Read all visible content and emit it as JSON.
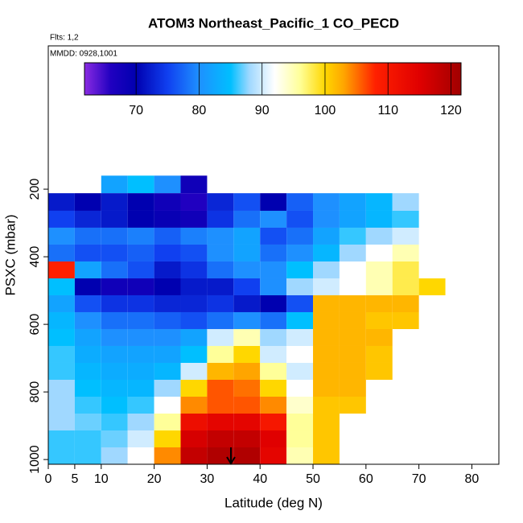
{
  "chart_data": {
    "type": "heatmap",
    "title": "ATOM3 Northeast_Pacific_1 CO_PECD",
    "flights": "Flts: 1,2",
    "dates": "MMDD: 0928,1001",
    "x_label": "Latitude (deg N)",
    "y_label": "PSXC (mbar)",
    "xlim": [
      0,
      85.1
    ],
    "ylim": [
      1014,
      -224
    ],
    "xticks": [
      0,
      5,
      10,
      20,
      30,
      40,
      50,
      60,
      70,
      80
    ],
    "yticks": [
      200,
      400,
      600,
      800,
      1000
    ],
    "lat_edges": [
      0,
      5,
      10,
      15,
      20,
      25,
      30,
      35,
      40,
      45,
      50,
      55,
      60,
      65,
      70,
      75
    ],
    "pressure_edges": [
      160,
      212,
      264,
      314,
      364,
      414,
      464,
      514,
      564,
      614,
      664,
      714,
      764,
      814,
      864,
      914,
      964,
      1014
    ],
    "values": [
      [
        null,
        null,
        82,
        85,
        80,
        68,
        null,
        null,
        null,
        null,
        null,
        null,
        null,
        null,
        null
      ],
      [
        72,
        70,
        72,
        70,
        68,
        66,
        73,
        76,
        70,
        77,
        80,
        82,
        84,
        88,
        null
      ],
      [
        75,
        73,
        72,
        70,
        69,
        68,
        74,
        78,
        80,
        76,
        80,
        82,
        84,
        86,
        null
      ],
      [
        80,
        78,
        78,
        79,
        77,
        79,
        80,
        82,
        76,
        78,
        82,
        86,
        88,
        90,
        null
      ],
      [
        78,
        76,
        76,
        77,
        75,
        76,
        80,
        82,
        78,
        80,
        84,
        88,
        92,
        95,
        null
      ],
      [
        108,
        82,
        78,
        76,
        72,
        74,
        78,
        80,
        80,
        85,
        88,
        92,
        95,
        98,
        null
      ],
      [
        85,
        70,
        68,
        68,
        70,
        72,
        72,
        75,
        80,
        88,
        90,
        92,
        95,
        98,
        100
      ],
      [
        82,
        76,
        74,
        74,
        73,
        73,
        74,
        72,
        70,
        76,
        102,
        102,
        102,
        102,
        null
      ],
      [
        84,
        80,
        78,
        78,
        77,
        76,
        78,
        80,
        78,
        85,
        102,
        102,
        101,
        101,
        null
      ],
      [
        85,
        82,
        80,
        80,
        80,
        82,
        90,
        95,
        88,
        90,
        102,
        102,
        102,
        null,
        null
      ],
      [
        86,
        83,
        82,
        82,
        82,
        85,
        96,
        100,
        90,
        92,
        102,
        102,
        101,
        null,
        null
      ],
      [
        86,
        84,
        83,
        83,
        84,
        90,
        102,
        103,
        96,
        90,
        102,
        102,
        101,
        null,
        null
      ],
      [
        88,
        85,
        84,
        84,
        88,
        100,
        106,
        105,
        100,
        92,
        102,
        102,
        null,
        null,
        null
      ],
      [
        88,
        86,
        85,
        86,
        92,
        104,
        106,
        106,
        104,
        94,
        101,
        101,
        null,
        null,
        null
      ],
      [
        88,
        87,
        86,
        88,
        96,
        112,
        114,
        114,
        110,
        96,
        101,
        null,
        null,
        null,
        null
      ],
      [
        86,
        86,
        87,
        90,
        100,
        116,
        118,
        118,
        115,
        96,
        101,
        null,
        null,
        null,
        null
      ],
      [
        86,
        86,
        88,
        92,
        104,
        118,
        120,
        120,
        114,
        95,
        101,
        null,
        null,
        null,
        null
      ]
    ],
    "colorbar": {
      "clim": [
        61.8,
        121.6
      ],
      "ticks": [
        70,
        80,
        90,
        100,
        110,
        120
      ],
      "colormap": [
        {
          "value": 61.8,
          "color": "#8a2be2"
        },
        {
          "value": 66,
          "color": "#2000c0"
        },
        {
          "value": 70,
          "color": "#0000b0"
        },
        {
          "value": 75,
          "color": "#1040f0"
        },
        {
          "value": 80,
          "color": "#1e90ff"
        },
        {
          "value": 85,
          "color": "#00bfff"
        },
        {
          "value": 88,
          "color": "#a0d8ff"
        },
        {
          "value": 92,
          "color": "#ffffff"
        },
        {
          "value": 96,
          "color": "#ffff99"
        },
        {
          "value": 100,
          "color": "#ffd700"
        },
        {
          "value": 103,
          "color": "#ffa500"
        },
        {
          "value": 108,
          "color": "#ff2000"
        },
        {
          "value": 115,
          "color": "#e00000"
        },
        {
          "value": 121.6,
          "color": "#a00000"
        }
      ]
    }
  }
}
